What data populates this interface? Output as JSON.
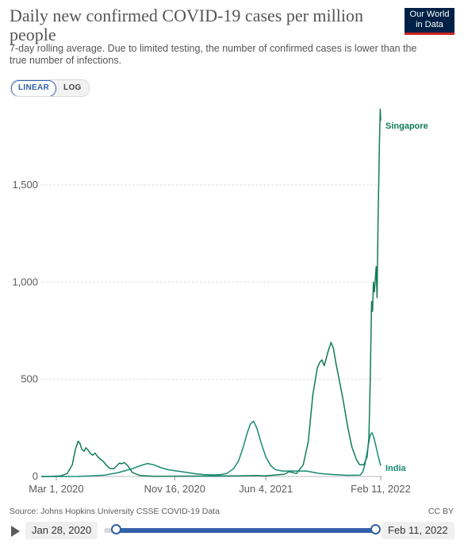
{
  "header": {
    "title": "Daily new confirmed COVID-19 cases per million people",
    "subtitle": "7-day rolling average. Due to limited testing, the number of confirmed cases is lower than the true number of infections.",
    "logo_line1": "Our World",
    "logo_line2": "in Data"
  },
  "scale_toggle": {
    "linear_label": "LINEAR",
    "log_label": "LOG",
    "selected": "LINEAR"
  },
  "footer": {
    "source": "Source: Johns Hopkins University CSSE COVID-19 Data",
    "license": "CC BY"
  },
  "timeline": {
    "start_label": "Jan 28, 2020",
    "end_label": "Feb 11, 2022"
  },
  "colors": {
    "singapore": "#127a5a",
    "india": "#188a73",
    "grid": "#dddddd",
    "axis_text": "#5b5b5b",
    "accent": "#3360a9",
    "logo_bg": "#002147",
    "logo_red": "#ce261e"
  },
  "chart_data": {
    "type": "line",
    "title": "Daily new confirmed COVID-19 cases per million people",
    "xlabel": "",
    "ylabel": "",
    "x_range": [
      "2020-01-28",
      "2022-02-11"
    ],
    "ylim": [
      0,
      1900
    ],
    "y_ticks": [
      0,
      500,
      1000,
      1500
    ],
    "y_tick_labels": [
      "0",
      "500",
      "1,000",
      "1,500"
    ],
    "x_tick_labels": [
      "Mar 1, 2020",
      "Nov 16, 2020",
      "Jun 4, 2021",
      "Feb 11, 2022"
    ],
    "x_tick_dates": [
      "2020-03-01",
      "2020-11-16",
      "2021-06-04",
      "2022-02-11"
    ],
    "grid": "horizontal dashed",
    "legend": "line-end labels",
    "series": [
      {
        "name": "Singapore",
        "points": [
          [
            "2020-01-28",
            0
          ],
          [
            "2020-02-20",
            1
          ],
          [
            "2020-03-10",
            3
          ],
          [
            "2020-03-25",
            15
          ],
          [
            "2020-04-05",
            60
          ],
          [
            "2020-04-12",
            140
          ],
          [
            "2020-04-18",
            182
          ],
          [
            "2020-04-22",
            170
          ],
          [
            "2020-04-26",
            140
          ],
          [
            "2020-05-01",
            130
          ],
          [
            "2020-05-05",
            148
          ],
          [
            "2020-05-10",
            135
          ],
          [
            "2020-05-15",
            118
          ],
          [
            "2020-05-20",
            110
          ],
          [
            "2020-05-25",
            120
          ],
          [
            "2020-05-30",
            105
          ],
          [
            "2020-06-05",
            90
          ],
          [
            "2020-06-12",
            78
          ],
          [
            "2020-06-20",
            55
          ],
          [
            "2020-06-27",
            42
          ],
          [
            "2020-07-05",
            40
          ],
          [
            "2020-07-12",
            55
          ],
          [
            "2020-07-18",
            70
          ],
          [
            "2020-07-22",
            65
          ],
          [
            "2020-07-28",
            72
          ],
          [
            "2020-08-05",
            55
          ],
          [
            "2020-08-15",
            20
          ],
          [
            "2020-09-01",
            5
          ],
          [
            "2020-10-01",
            1
          ],
          [
            "2021-01-01",
            2
          ],
          [
            "2021-04-01",
            3
          ],
          [
            "2021-05-15",
            5
          ],
          [
            "2021-06-01",
            3
          ],
          [
            "2021-07-15",
            12
          ],
          [
            "2021-07-25",
            25
          ],
          [
            "2021-08-10",
            15
          ],
          [
            "2021-08-25",
            60
          ],
          [
            "2021-09-05",
            180
          ],
          [
            "2021-09-15",
            420
          ],
          [
            "2021-09-25",
            560
          ],
          [
            "2021-10-01",
            590
          ],
          [
            "2021-10-05",
            600
          ],
          [
            "2021-10-10",
            570
          ],
          [
            "2021-10-18",
            640
          ],
          [
            "2021-10-25",
            690
          ],
          [
            "2021-10-30",
            660
          ],
          [
            "2021-11-05",
            580
          ],
          [
            "2021-11-10",
            520
          ],
          [
            "2021-11-20",
            400
          ],
          [
            "2021-12-01",
            250
          ],
          [
            "2021-12-10",
            150
          ],
          [
            "2021-12-20",
            85
          ],
          [
            "2021-12-27",
            60
          ],
          [
            "2022-01-05",
            60
          ],
          [
            "2022-01-12",
            100
          ],
          [
            "2022-01-16",
            200
          ],
          [
            "2022-01-19",
            500
          ],
          [
            "2022-01-22",
            900
          ],
          [
            "2022-01-24",
            850
          ],
          [
            "2022-01-26",
            1000
          ],
          [
            "2022-01-28",
            950
          ],
          [
            "2022-02-01",
            1080
          ],
          [
            "2022-02-03",
            920
          ],
          [
            "2022-02-05",
            1300
          ],
          [
            "2022-02-08",
            1700
          ],
          [
            "2022-02-10",
            1890
          ],
          [
            "2022-02-11",
            1830
          ]
        ]
      },
      {
        "name": "India",
        "points": [
          [
            "2020-01-28",
            0
          ],
          [
            "2020-03-15",
            0.1
          ],
          [
            "2020-04-15",
            0.5
          ],
          [
            "2020-05-15",
            3
          ],
          [
            "2020-06-15",
            7
          ],
          [
            "2020-07-15",
            20
          ],
          [
            "2020-08-15",
            40
          ],
          [
            "2020-09-01",
            55
          ],
          [
            "2020-09-17",
            67
          ],
          [
            "2020-10-01",
            60
          ],
          [
            "2020-10-15",
            47
          ],
          [
            "2020-11-01",
            35
          ],
          [
            "2020-11-16",
            30
          ],
          [
            "2020-12-01",
            25
          ],
          [
            "2020-12-15",
            20
          ],
          [
            "2021-01-01",
            14
          ],
          [
            "2021-01-20",
            10
          ],
          [
            "2021-02-10",
            8
          ],
          [
            "2021-02-25",
            10
          ],
          [
            "2021-03-10",
            15
          ],
          [
            "2021-03-25",
            40
          ],
          [
            "2021-04-05",
            80
          ],
          [
            "2021-04-15",
            150
          ],
          [
            "2021-04-25",
            230
          ],
          [
            "2021-05-01",
            270
          ],
          [
            "2021-05-08",
            285
          ],
          [
            "2021-05-15",
            250
          ],
          [
            "2021-05-25",
            170
          ],
          [
            "2021-06-04",
            100
          ],
          [
            "2021-06-15",
            55
          ],
          [
            "2021-06-25",
            35
          ],
          [
            "2021-07-10",
            28
          ],
          [
            "2021-08-01",
            28
          ],
          [
            "2021-09-01",
            28
          ],
          [
            "2021-09-15",
            22
          ],
          [
            "2021-10-01",
            15
          ],
          [
            "2021-11-01",
            10
          ],
          [
            "2021-12-01",
            6
          ],
          [
            "2021-12-28",
            7
          ],
          [
            "2022-01-03",
            25
          ],
          [
            "2022-01-08",
            70
          ],
          [
            "2022-01-14",
            150
          ],
          [
            "2022-01-19",
            215
          ],
          [
            "2022-01-23",
            225
          ],
          [
            "2022-01-27",
            200
          ],
          [
            "2022-02-01",
            150
          ],
          [
            "2022-02-06",
            100
          ],
          [
            "2022-02-11",
            55
          ]
        ]
      }
    ]
  }
}
